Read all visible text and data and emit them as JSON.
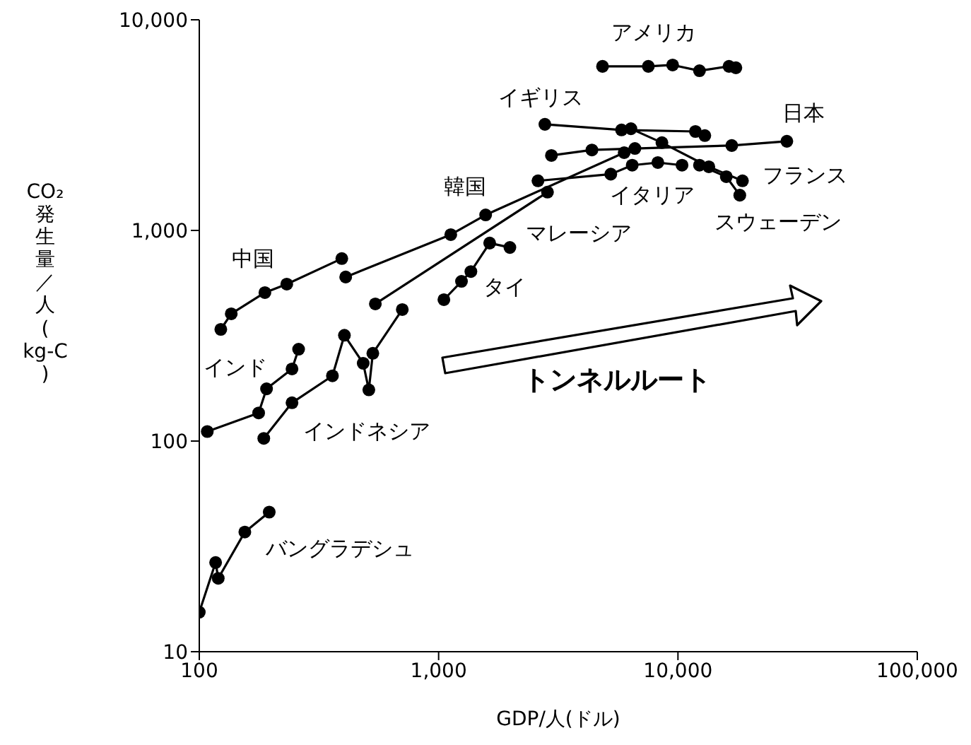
{
  "chart_data": {
    "type": "line",
    "xlabel": "GDP/人(ドル)",
    "ylabel": "CO₂発生量／人(kg-C)",
    "log": "xy",
    "marker": "circle",
    "xlim": [
      100,
      100000
    ],
    "ylim": [
      10,
      10000
    ],
    "xticks": [
      100,
      {
        "value": 1000,
        "label": "1,000"
      },
      {
        "value": 10000,
        "label": "10,000"
      },
      {
        "value": 100000,
        "label": "100,000"
      }
    ],
    "yticks": [
      10,
      100,
      {
        "value": 1000,
        "label": "1,000"
      },
      {
        "value": 10000,
        "label": "10,000"
      }
    ],
    "series": [
      {
        "name": "アメリカ",
        "color": "#000000",
        "x": [
          4840,
          7520,
          9500,
          12300,
          16340,
          17460
        ],
        "values": [
          6010,
          6010,
          6100,
          5730,
          6010,
          5920
        ]
      },
      {
        "name": "イギリス",
        "color": "#000000",
        "x": [
          2780,
          5810,
          11830,
          12950
        ],
        "values": [
          3190,
          3000,
          2950,
          2820
        ]
      },
      {
        "name": "日本",
        "color": "#000000",
        "x": [
          2960,
          4370,
          6610,
          16780,
          28510
        ],
        "values": [
          2270,
          2410,
          2450,
          2530,
          2650
        ]
      },
      {
        "name": "フランス",
        "color": "#000000",
        "x": [
          6360,
          8570,
          13460,
          18600
        ],
        "values": [
          3040,
          2610,
          2005,
          1720
        ]
      },
      {
        "name": "イタリア",
        "color": "#000000",
        "x": [
          2600,
          5240,
          6440,
          8240,
          10400
        ],
        "values": [
          1720,
          1850,
          2040,
          2100,
          2040
        ]
      },
      {
        "name": "スウェーデン",
        "color": "#000000",
        "x": [
          12300,
          15920,
          18130
        ],
        "values": [
          2040,
          1800,
          1470
        ]
      },
      {
        "name": "韓国",
        "color": "#000000",
        "x": [
          409,
          1124,
          1572,
          5960
        ],
        "values": [
          601,
          955,
          1185,
          2340
        ]
      },
      {
        "name": "マレーシア",
        "color": "#000000",
        "x": [
          544,
          2850
        ],
        "values": [
          448,
          1520
        ]
      },
      {
        "name": "タイ",
        "color": "#000000",
        "x": [
          1052,
          1246,
          1364,
          1634,
          1985
        ],
        "values": [
          469,
          573,
          638,
          871,
          830
        ]
      },
      {
        "name": "中国",
        "color": "#000000",
        "x": [
          123,
          136,
          188,
          232,
          394
        ],
        "values": [
          339,
          402,
          507,
          556,
          735
        ]
      },
      {
        "name": "インド",
        "color": "#000000",
        "x": [
          108,
          177,
          191,
          244,
          260
        ],
        "values": [
          111,
          136,
          177,
          220,
          273
        ]
      },
      {
        "name": "インドネシア",
        "color": "#000000",
        "x": [
          186,
          244,
          360,
          404,
          484,
          511,
          531,
          705
        ],
        "values": [
          103,
          152,
          204,
          318,
          234,
          175,
          261,
          421
        ]
      },
      {
        "name": "バングラデシュ",
        "color": "#000000",
        "x": [
          100,
          117,
          120,
          155,
          196
        ],
        "values": [
          15.4,
          26.5,
          22.3,
          37,
          46
        ]
      }
    ],
    "annotations": [
      "トンネルルート"
    ]
  }
}
